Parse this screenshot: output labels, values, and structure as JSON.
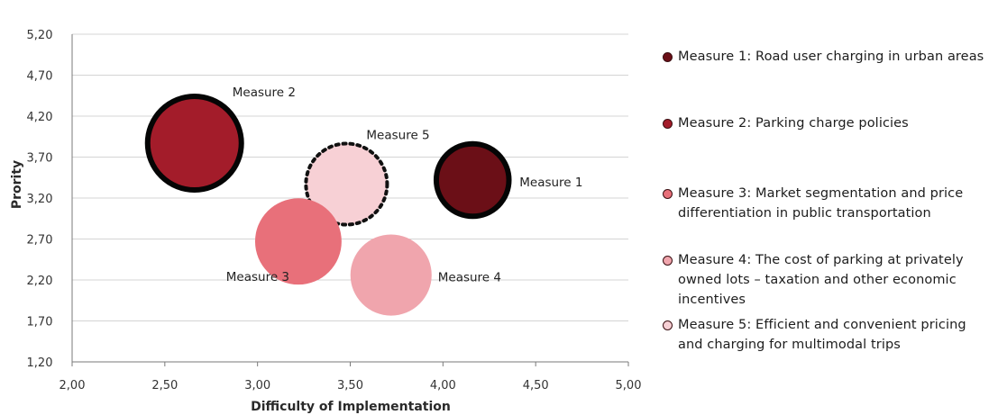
{
  "chart_data": {
    "type": "bubble",
    "xlabel": "Difficulty of Implementation",
    "ylabel": "Prority",
    "xlim": [
      2.0,
      5.0
    ],
    "ylim": [
      1.2,
      5.2
    ],
    "x_ticks": [
      "2,00",
      "2,50",
      "3,00",
      "3,50",
      "4,00",
      "4,50",
      "5,00"
    ],
    "y_ticks": [
      "1,20",
      "1,70",
      "2,20",
      "2,70",
      "3,20",
      "3,70",
      "4,20",
      "4,70",
      "5,20"
    ],
    "grid": "horizontal",
    "legend_position": "right",
    "points": [
      {
        "label": "Measure 1",
        "x": 4.16,
        "y": 3.42,
        "size": 0.6,
        "color": "#6b0f17",
        "outline": "solid"
      },
      {
        "label": "Measure 2",
        "x": 2.66,
        "y": 3.87,
        "size": 1.0,
        "color": "#a31c2a",
        "outline": "solid"
      },
      {
        "label": "Measure 3",
        "x": 3.22,
        "y": 2.67,
        "size": 0.85,
        "color": "#e8707a",
        "outline": "none"
      },
      {
        "label": "Measure 4",
        "x": 3.72,
        "y": 2.26,
        "size": 0.75,
        "color": "#f0a5ad",
        "outline": "none"
      },
      {
        "label": "Measure 5",
        "x": 3.48,
        "y": 3.37,
        "size": 0.75,
        "color": "#f7d0d5",
        "outline": "dotted"
      }
    ]
  },
  "legend": {
    "items": [
      {
        "text": "Measure 1: Road user charging in urban areas",
        "color": "#6b0f17"
      },
      {
        "text": "Measure 2: Parking charge policies",
        "color": "#a31c2a"
      },
      {
        "text": "Measure 3: Market segmentation and price differentiation in public transportation",
        "color": "#e8707a"
      },
      {
        "text": "Measure 4: The cost of parking at privately owned lots – taxation and other economic incentives",
        "color": "#f0a5ad"
      },
      {
        "text": "Measure 5: Efficient and convenient pricing and charging for multimodal trips",
        "color": "#f7d0d5"
      }
    ]
  }
}
